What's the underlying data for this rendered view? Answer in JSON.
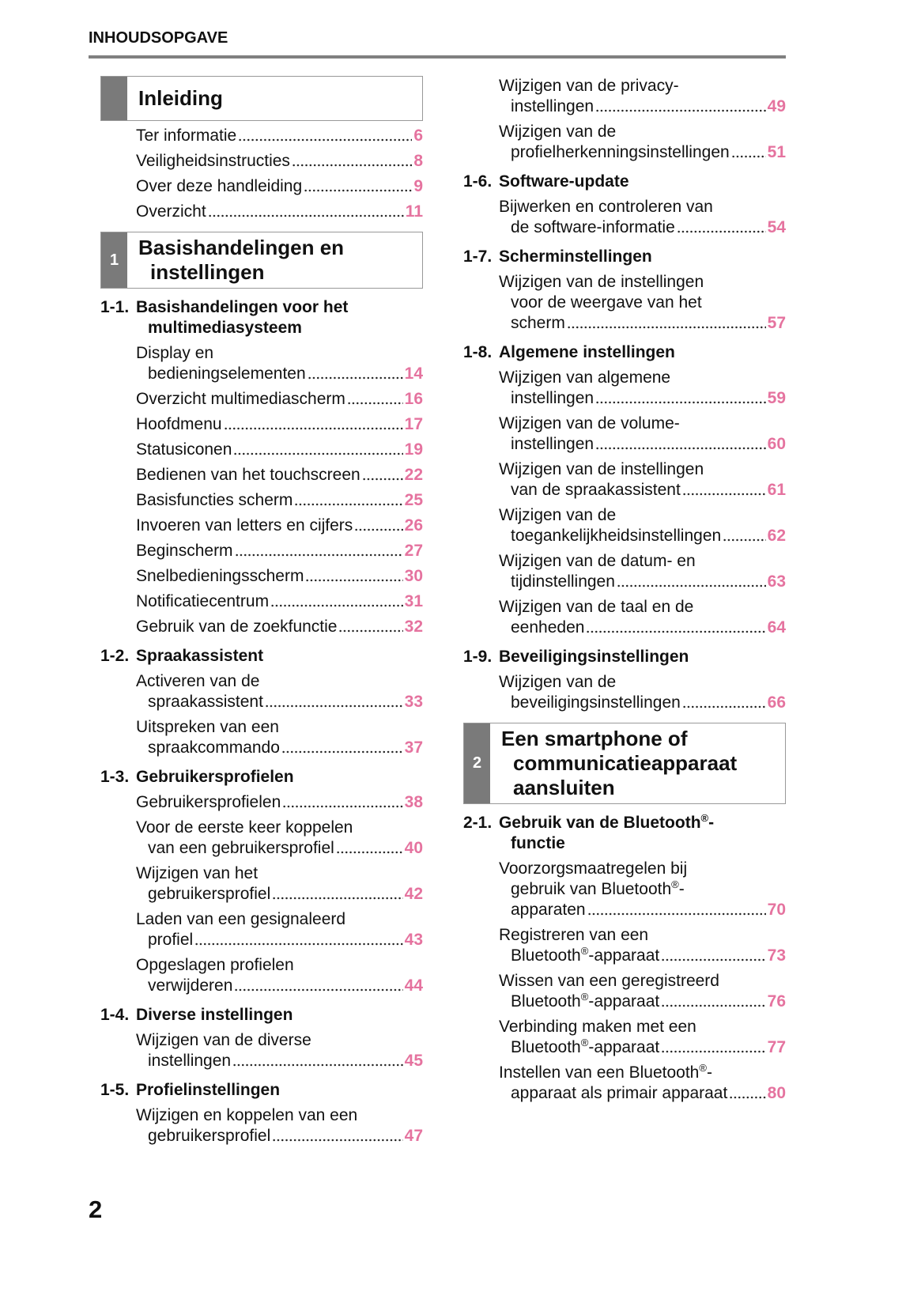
{
  "header": {
    "title": "INHOUDSOPGAVE"
  },
  "columns": [
    {
      "blocks": [
        {
          "chapter_title": [
            "Inleiding"
          ]
        },
        {
          "lines": [
            "Ter informatie"
          ],
          "page": 6
        },
        {
          "lines": [
            "Veiligheidsinstructies"
          ],
          "page": 8
        },
        {
          "lines": [
            "Over deze handleiding"
          ],
          "page": 9
        },
        {
          "lines": [
            "Overzicht"
          ],
          "page": 11
        },
        {
          "chapter_number": "1",
          "chapter_title": [
            "Basishandelingen en",
            "instellingen"
          ]
        },
        {
          "section_number": "1-1.",
          "section_title": [
            "Basishandelingen voor het",
            "multimediasysteem"
          ]
        },
        {
          "lines": [
            "Display en",
            "bedieningselementen"
          ],
          "page": 14
        },
        {
          "lines": [
            "Overzicht multimediascherm"
          ],
          "page": 16
        },
        {
          "lines": [
            "Hoofdmenu"
          ],
          "page": 17
        },
        {
          "lines": [
            "Statusiconen"
          ],
          "page": 19
        },
        {
          "lines": [
            "Bedienen van het touchscreen"
          ],
          "page": 22
        },
        {
          "lines": [
            "Basisfuncties scherm"
          ],
          "page": 25
        },
        {
          "lines": [
            "Invoeren van letters en cijfers"
          ],
          "page": 26
        },
        {
          "lines": [
            "Beginscherm"
          ],
          "page": 27
        },
        {
          "lines": [
            "Snelbedieningsscherm"
          ],
          "page": 30
        },
        {
          "lines": [
            "Notificatiecentrum"
          ],
          "page": 31
        },
        {
          "lines": [
            "Gebruik van de zoekfunctie"
          ],
          "page": 32
        },
        {
          "section_number": "1-2.",
          "section_title": [
            "Spraakassistent"
          ]
        },
        {
          "lines": [
            "Activeren van de",
            "spraakassistent"
          ],
          "page": 33
        },
        {
          "lines": [
            "Uitspreken van een",
            "spraakcommando"
          ],
          "page": 37
        },
        {
          "section_number": "1-3.",
          "section_title": [
            "Gebruikersprofielen"
          ]
        },
        {
          "lines": [
            "Gebruikersprofielen"
          ],
          "page": 38
        },
        {
          "lines": [
            "Voor de eerste keer koppelen",
            "van een gebruikersprofiel"
          ],
          "page": 40
        },
        {
          "lines": [
            "Wijzigen van het",
            "gebruikersprofiel"
          ],
          "page": 42
        },
        {
          "lines": [
            "Laden van een gesignaleerd",
            "profiel"
          ],
          "page": 43
        },
        {
          "lines": [
            "Opgeslagen profielen",
            "verwijderen"
          ],
          "page": 44
        },
        {
          "section_number": "1-4.",
          "section_title": [
            "Diverse instellingen"
          ]
        },
        {
          "lines": [
            "Wijzigen van de diverse",
            "instellingen"
          ],
          "page": 45
        },
        {
          "section_number": "1-5.",
          "section_title": [
            "Profielinstellingen"
          ]
        },
        {
          "lines": [
            "Wijzigen en koppelen van een",
            "gebruikersprofiel"
          ],
          "page": 47
        }
      ]
    },
    {
      "blocks": [
        {
          "lines": [
            "Wijzigen van de privacy-",
            "instellingen"
          ],
          "page": 49
        },
        {
          "lines": [
            "Wijzigen van de",
            "profielherkenningsinstellingen"
          ],
          "page": 51
        },
        {
          "section_number": "1-6.",
          "section_title": [
            "Software-update"
          ]
        },
        {
          "lines": [
            "Bijwerken en controleren van",
            "de software-informatie"
          ],
          "page": 54
        },
        {
          "section_number": "1-7.",
          "section_title": [
            "Scherminstellingen"
          ]
        },
        {
          "lines": [
            "Wijzigen van de instellingen",
            "voor de weergave van het",
            "scherm"
          ],
          "page": 57
        },
        {
          "section_number": "1-8.",
          "section_title": [
            "Algemene instellingen"
          ]
        },
        {
          "lines": [
            "Wijzigen van algemene",
            "instellingen"
          ],
          "page": 59
        },
        {
          "lines": [
            "Wijzigen van de volume-",
            "instellingen"
          ],
          "page": 60
        },
        {
          "lines": [
            "Wijzigen van de instellingen",
            "van de spraakassistent"
          ],
          "page": 61
        },
        {
          "lines": [
            "Wijzigen van de",
            "toegankelijkheidsinstellingen"
          ],
          "page": 62
        },
        {
          "lines": [
            "Wijzigen van de datum- en",
            "tijdinstellingen"
          ],
          "page": 63
        },
        {
          "lines": [
            "Wijzigen van de taal en de",
            "eenheden"
          ],
          "page": 64
        },
        {
          "section_number": "1-9.",
          "section_title": [
            "Beveiligingsinstellingen"
          ]
        },
        {
          "lines": [
            "Wijzigen van de",
            "beveiligingsinstellingen"
          ],
          "page": 66
        },
        {
          "chapter_number": "2",
          "chapter_title": [
            "Een smartphone of",
            "communicatieapparaat",
            "aansluiten"
          ]
        },
        {
          "section_number": "2-1.",
          "section_title": [
            "Gebruik van de Bluetooth®-",
            "functie"
          ]
        },
        {
          "lines": [
            "Voorzorgsmaatregelen bij",
            "gebruik van Bluetooth®-",
            "apparaten"
          ],
          "page": 70
        },
        {
          "lines": [
            "Registreren van een",
            "Bluetooth®-apparaat"
          ],
          "page": 73
        },
        {
          "lines": [
            "Wissen van een geregistreerd",
            "Bluetooth®-apparaat"
          ],
          "page": 76
        },
        {
          "lines": [
            "Verbinding maken met een",
            "Bluetooth®-apparaat"
          ],
          "page": 77
        },
        {
          "lines": [
            "Instellen van een Bluetooth®-",
            "apparaat als primair apparaat"
          ],
          "page": 80
        }
      ]
    }
  ],
  "page_number": "2"
}
